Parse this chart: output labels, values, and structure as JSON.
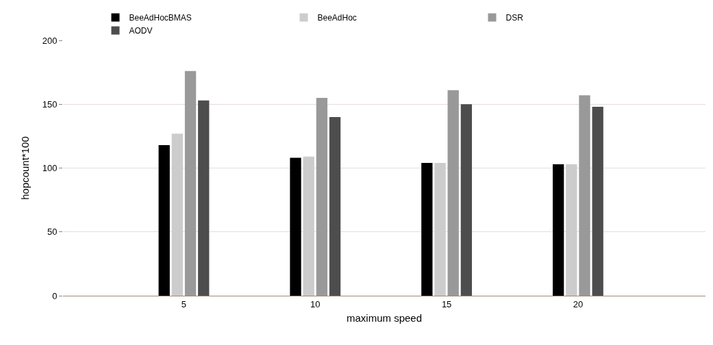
{
  "chart_data": {
    "type": "bar",
    "xlabel": "maximum speed",
    "ylabel": "hopcount*100",
    "categories": [
      "5",
      "10",
      "15",
      "20"
    ],
    "series": [
      {
        "name": "BeeAdHocBMAS",
        "color": "#000000",
        "values": [
          118,
          108,
          104,
          103
        ]
      },
      {
        "name": "BeeAdHoc",
        "color": "#cccccc",
        "values": [
          127,
          109,
          104,
          103
        ]
      },
      {
        "name": "DSR",
        "color": "#999999",
        "values": [
          176,
          155,
          161,
          157
        ]
      },
      {
        "name": "AODV",
        "color": "#4d4d4d",
        "values": [
          153,
          140,
          150,
          148
        ]
      }
    ],
    "ylim": [
      0,
      200
    ],
    "yticks": [
      0,
      50,
      100,
      150,
      200
    ],
    "grid": "y",
    "legend": "top"
  }
}
